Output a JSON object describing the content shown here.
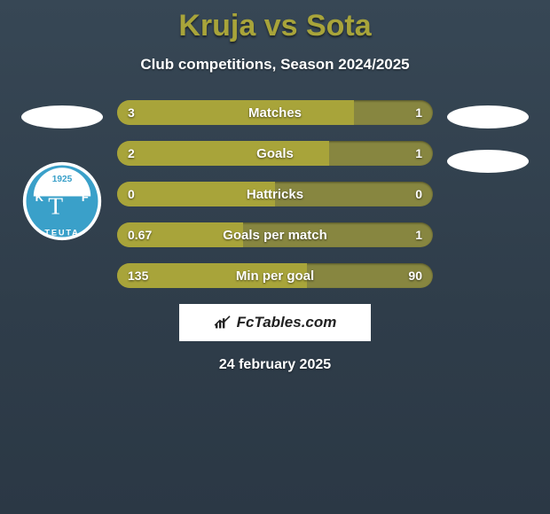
{
  "title": "Kruja vs Sota",
  "subtitle": "Club competitions, Season 2024/2025",
  "date": "24 february 2025",
  "brand": "FcTables.com",
  "colors": {
    "bar_left": "#a8a43a",
    "bar_right": "#878640",
    "title": "#a8a43a",
    "text": "#ffffff",
    "bg_top": "#374755",
    "bg_bottom": "#2b3845"
  },
  "left_team": {
    "name": "Kruja",
    "badges": [
      {
        "type": "ellipse_placeholder",
        "color": "#ffffff"
      },
      {
        "type": "teuta_badge"
      }
    ]
  },
  "right_team": {
    "name": "Sota",
    "badges": [
      {
        "type": "ellipse_placeholder",
        "color": "#ffffff"
      },
      {
        "type": "ellipse_placeholder",
        "color": "#ffffff"
      }
    ]
  },
  "rows": [
    {
      "label": "Matches",
      "left": "3",
      "right": "1",
      "left_pct": 75
    },
    {
      "label": "Goals",
      "left": "2",
      "right": "1",
      "left_pct": 67
    },
    {
      "label": "Hattricks",
      "left": "0",
      "right": "0",
      "left_pct": 50
    },
    {
      "label": "Goals per match",
      "left": "0.67",
      "right": "1",
      "left_pct": 40
    },
    {
      "label": "Min per goal",
      "left": "135",
      "right": "90",
      "left_pct": 60
    }
  ]
}
